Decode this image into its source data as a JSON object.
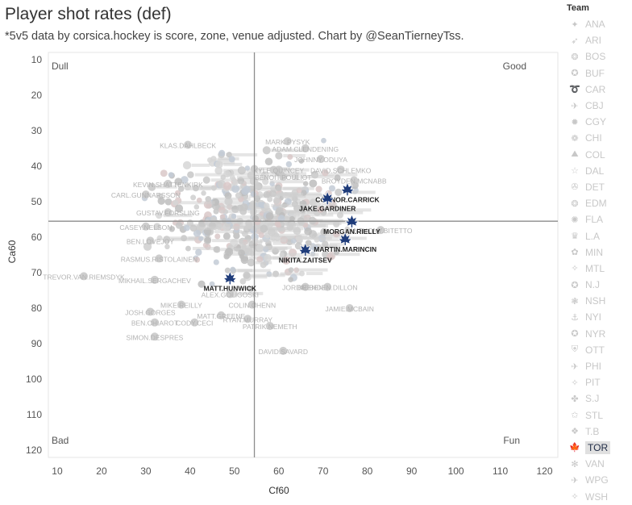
{
  "header": {
    "title": "Player shot rates (def)",
    "subtitle": "*5v5 data by corsica.hockey is score, zone, venue adjusted. Chart by @SeanTierneyTss."
  },
  "legend": {
    "title": "Team",
    "items": [
      {
        "label": "ANA",
        "icon": "duck-icon"
      },
      {
        "label": "ARI",
        "icon": "coyote-icon"
      },
      {
        "label": "BOS",
        "icon": "bruins-icon"
      },
      {
        "label": "BUF",
        "icon": "sabres-icon"
      },
      {
        "label": "CAR",
        "icon": "hurricanes-icon"
      },
      {
        "label": "CBJ",
        "icon": "bluejackets-icon"
      },
      {
        "label": "CGY",
        "icon": "flames-icon"
      },
      {
        "label": "CHI",
        "icon": "blackhawks-icon"
      },
      {
        "label": "COL",
        "icon": "avalanche-icon"
      },
      {
        "label": "DAL",
        "icon": "stars-icon"
      },
      {
        "label": "DET",
        "icon": "redwings-icon"
      },
      {
        "label": "EDM",
        "icon": "oilers-icon"
      },
      {
        "label": "FLA",
        "icon": "panthers-icon"
      },
      {
        "label": "L.A",
        "icon": "kings-icon"
      },
      {
        "label": "MIN",
        "icon": "wild-icon"
      },
      {
        "label": "MTL",
        "icon": "canadiens-icon"
      },
      {
        "label": "N.J",
        "icon": "devils-icon"
      },
      {
        "label": "NSH",
        "icon": "predators-icon"
      },
      {
        "label": "NYI",
        "icon": "islanders-icon"
      },
      {
        "label": "NYR",
        "icon": "rangers-icon"
      },
      {
        "label": "OTT",
        "icon": "senators-icon"
      },
      {
        "label": "PHI",
        "icon": "flyers-icon"
      },
      {
        "label": "PIT",
        "icon": "penguins-icon"
      },
      {
        "label": "S.J",
        "icon": "sharks-icon"
      },
      {
        "label": "STL",
        "icon": "blues-icon"
      },
      {
        "label": "T.B",
        "icon": "lightning-icon"
      },
      {
        "label": "TOR",
        "icon": "mapleleafs-icon",
        "active": true
      },
      {
        "label": "VAN",
        "icon": "canucks-icon"
      },
      {
        "label": "WPG",
        "icon": "jets-icon"
      },
      {
        "label": "WSH",
        "icon": "capitals-icon"
      }
    ]
  },
  "chart_data": {
    "type": "scatter",
    "title": "Player shot rates (def)",
    "xlabel": "Cf60",
    "ylabel": "Ca60",
    "xlim": [
      8,
      123
    ],
    "ylim": [
      8,
      122
    ],
    "y_reversed": true,
    "xticks": [
      10,
      20,
      30,
      40,
      50,
      60,
      70,
      80,
      90,
      100,
      110,
      120
    ],
    "yticks": [
      10,
      20,
      30,
      40,
      50,
      60,
      70,
      80,
      90,
      100,
      110,
      120
    ],
    "reference_lines": {
      "x": 54.5,
      "y": 55.5
    },
    "quadrant_labels": {
      "top_left": "Dull",
      "top_right": "Good",
      "bottom_left": "Bad",
      "bottom_right": "Fun"
    },
    "highlight_team": "TOR",
    "highlighted_players": [
      {
        "name": "CONNOR.CARRICK",
        "team": "TOR",
        "x": 75.5,
        "y": 46.5
      },
      {
        "name": "JAKE.GARDINER",
        "team": "TOR",
        "x": 71,
        "y": 49
      },
      {
        "name": "MORGAN.RIELLY",
        "team": "TOR",
        "x": 76.5,
        "y": 55.5
      },
      {
        "name": "MARTIN.MARINCIN",
        "team": "TOR",
        "x": 75,
        "y": 60.5
      },
      {
        "name": "NIKITA.ZAITSEV",
        "team": "TOR",
        "x": 66,
        "y": 63.5
      },
      {
        "name": "MATT.HUNWICK",
        "team": "TOR",
        "x": 49,
        "y": 71.5
      }
    ],
    "other_players": [
      {
        "name": "KLAS.DAHLBECK",
        "x": 39.5,
        "y": 34
      },
      {
        "name": "MARK.PYSYK",
        "x": 62,
        "y": 33
      },
      {
        "name": "ADAM.CLENDENING",
        "x": 66,
        "y": 35
      },
      {
        "name": "JOHNNY.ODUYA",
        "x": 69.5,
        "y": 38
      },
      {
        "name": "KYLE.QUINCEY",
        "x": 60,
        "y": 41
      },
      {
        "name": "DAVID.SCHLEMKO",
        "x": 74,
        "y": 41
      },
      {
        "name": "BENOIT.POULIOT",
        "x": 61,
        "y": 43
      },
      {
        "name": "BROYDEN.MCNABB",
        "x": 77,
        "y": 44
      },
      {
        "name": "KEVIN.SHATTENKIRK",
        "x": 35,
        "y": 45
      },
      {
        "name": "CARL.GUNNARSSON",
        "x": 30,
        "y": 48
      },
      {
        "name": "GUSTAV.FORSLING",
        "x": 35,
        "y": 53
      },
      {
        "name": "CASEY.NELSON",
        "x": 30,
        "y": 57
      },
      {
        "name": "BEN.LOVEJOY",
        "x": 31,
        "y": 61
      },
      {
        "name": "RASMUS.RISTOLAINEN",
        "x": 33,
        "y": 66
      },
      {
        "name": "MIKHAIL.SERGACHEV",
        "x": 32,
        "y": 72
      },
      {
        "name": "TREVOR.VAN.RIEMSDYK",
        "x": 16,
        "y": 71
      },
      {
        "name": "ANTHONY.BITETTO",
        "x": 83,
        "y": 58
      },
      {
        "name": "JORDIE.BENN",
        "x": 66,
        "y": 74
      },
      {
        "name": "BRENDEN.DILLON",
        "x": 71,
        "y": 74
      },
      {
        "name": "JAMIE.MCBAIN",
        "x": 76,
        "y": 80
      },
      {
        "name": "JOSH.GORGES",
        "x": 31,
        "y": 81
      },
      {
        "name": "MIKE.REILLY",
        "x": 38,
        "y": 79
      },
      {
        "name": "ALEX.GOLIGOSKI",
        "x": 49,
        "y": 76
      },
      {
        "name": "COLIN.CHENN",
        "x": 54,
        "y": 79
      },
      {
        "name": "BEN.CHIAROT",
        "x": 32,
        "y": 84
      },
      {
        "name": "CODY.CECI",
        "x": 41,
        "y": 84
      },
      {
        "name": "MATT.GREENE",
        "x": 47,
        "y": 82
      },
      {
        "name": "RYAN.MURRAY",
        "x": 53,
        "y": 83
      },
      {
        "name": "PATRIK.NEMETH",
        "x": 58,
        "y": 85
      },
      {
        "name": "SIMON.DESPRES",
        "x": 32,
        "y": 88
      },
      {
        "name": "DAVID.SAVARD",
        "x": 61,
        "y": 92
      }
    ]
  }
}
